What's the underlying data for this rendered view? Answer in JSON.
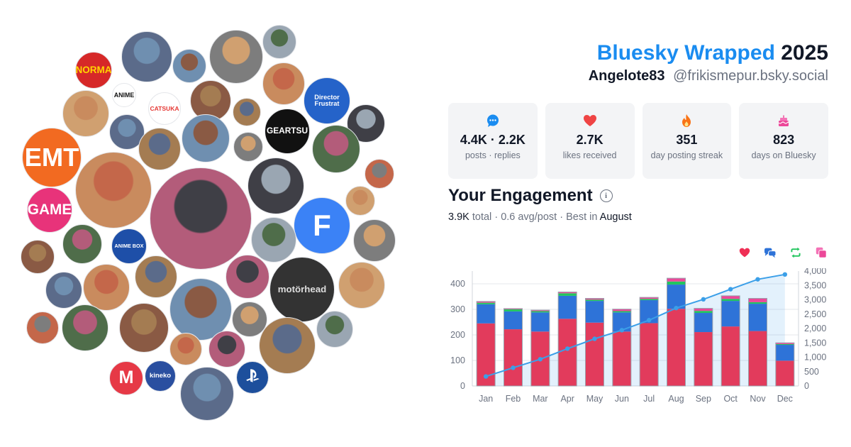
{
  "header": {
    "brand": "Bluesky Wrapped",
    "year": "2025",
    "display_name": "Angelote83",
    "handle": "@frikismepur.bsky.social"
  },
  "stats": [
    {
      "icon": "speech-bubble-icon",
      "value": "4.4K · 2.2K",
      "label": "posts · replies",
      "color": "#1a8cf0"
    },
    {
      "icon": "heart-icon",
      "value": "2.7K",
      "label": "likes received",
      "color": "#ef4444"
    },
    {
      "icon": "flame-icon",
      "value": "351",
      "label": "day posting streak",
      "color": "#f97316"
    },
    {
      "icon": "cake-icon",
      "value": "823",
      "label": "days on Bluesky",
      "color": "#ec4899"
    }
  ],
  "engagement": {
    "title": "Your Engagement",
    "total": "3.9K",
    "total_suffix": "total",
    "avg": "0.6 avg/post",
    "best_prefix": "Best in",
    "best_month": "August",
    "legend": [
      {
        "icon": "heart-icon",
        "color": "#ef2f55"
      },
      {
        "icon": "reply-icon",
        "color": "#2e73d8"
      },
      {
        "icon": "repost-icon",
        "color": "#22c55e"
      },
      {
        "icon": "quote-icon",
        "color": "#ec4899"
      }
    ]
  },
  "avatars": [
    {
      "kind": "text",
      "text": "NORMA",
      "bg": "#d62828",
      "fg": "#ffd400"
    },
    {
      "kind": "text",
      "text": "ANIME",
      "bg": "#ffffff",
      "fg": "#111111"
    },
    {
      "kind": "text",
      "text": "CATSUKA",
      "bg": "#ffffff",
      "fg": "#e53935"
    },
    {
      "kind": "text",
      "text": "GEARTSU",
      "bg": "#111111",
      "fg": "#ffffff"
    },
    {
      "kind": "text",
      "text": "Director Frustrat",
      "bg": "#2563c9",
      "fg": "#ffffff"
    },
    {
      "kind": "text",
      "text": "EMT",
      "bg": "#f26a21",
      "fg": "#ffffff"
    },
    {
      "kind": "text",
      "text": "GAME",
      "bg": "#e8337a",
      "fg": "#ffffff"
    },
    {
      "kind": "text",
      "text": "F",
      "bg": "#3b82f6",
      "fg": "#ffffff"
    },
    {
      "kind": "text",
      "text": "ANIME BOX",
      "bg": "#1e4fa8",
      "fg": "#ffffff"
    },
    {
      "kind": "text",
      "text": "M",
      "bg": "#e63946",
      "fg": "#ffffff"
    },
    {
      "kind": "text",
      "text": "kineko",
      "bg": "#2a4fa0",
      "fg": "#ffffff"
    },
    {
      "kind": "text",
      "text": "motörhead",
      "bg": "#333333",
      "fg": "#dddddd"
    },
    {
      "kind": "icon",
      "icon": "playstation-icon",
      "bg": "#1d4f9c",
      "fg": "#ffffff"
    }
  ],
  "chart_data": {
    "type": "bar",
    "stacked": true,
    "categories": [
      "Jan",
      "Feb",
      "Mar",
      "Apr",
      "May",
      "Jun",
      "Jul",
      "Aug",
      "Sep",
      "Oct",
      "Nov",
      "Dec"
    ],
    "series": [
      {
        "color": "#e23b5c",
        "values": [
          245,
          222,
          213,
          263,
          248,
          213,
          246,
          302,
          211,
          233,
          215,
          99
        ]
      },
      {
        "color": "#2e73d8",
        "values": [
          75,
          70,
          75,
          90,
          85,
          75,
          90,
          95,
          75,
          100,
          107,
          62
        ]
      },
      {
        "color": "#22c55e",
        "values": [
          6,
          8,
          5,
          10,
          5,
          5,
          5,
          12,
          8,
          8,
          6,
          3
        ]
      },
      {
        "color": "#ec4899",
        "values": [
          5,
          3,
          4,
          5,
          5,
          8,
          6,
          13,
          10,
          12,
          15,
          5
        ]
      }
    ],
    "cumulative": {
      "color": "#3b9fe8",
      "values": [
        331,
        634,
        931,
        1299,
        1642,
        1943,
        2290,
        2712,
        3016,
        3369,
        3712,
        3881
      ]
    },
    "y_left": {
      "min": 0,
      "max": 450,
      "ticks": [
        0,
        100,
        200,
        300,
        400
      ]
    },
    "y_right": {
      "min": 0,
      "max": 4000,
      "ticks": [
        "0",
        "500",
        "1,000",
        "1,500",
        "2,000",
        "2,500",
        "3,000",
        "3,500",
        "4,000"
      ]
    },
    "grid": true
  }
}
